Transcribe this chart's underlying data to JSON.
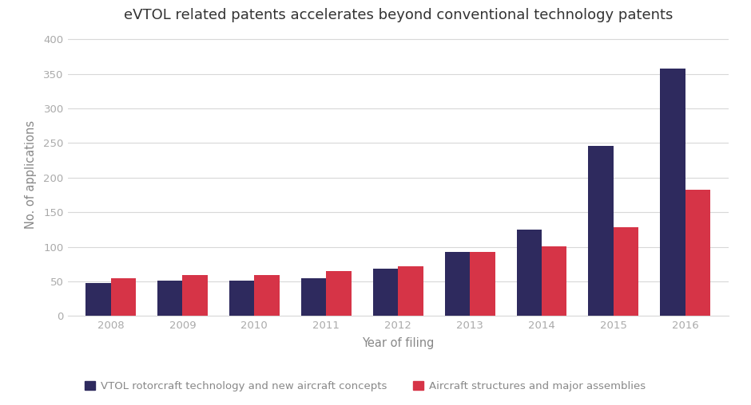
{
  "title": "eVTOL related patents accelerates beyond conventional technology patents",
  "xlabel": "Year of filing",
  "ylabel": "No. of applications",
  "years": [
    2008,
    2009,
    2010,
    2011,
    2012,
    2013,
    2014,
    2015,
    2016
  ],
  "vtol_values": [
    47,
    51,
    51,
    55,
    68,
    93,
    125,
    246,
    358
  ],
  "aircraft_values": [
    54,
    59,
    59,
    65,
    72,
    93,
    101,
    128,
    183
  ],
  "vtol_color": "#2e2a5e",
  "aircraft_color": "#d63447",
  "background_color": "#ffffff",
  "plot_area_color": "#ffffff",
  "legend_vtol": "VTOL rotorcraft technology and new aircraft concepts",
  "legend_aircraft": "Aircraft structures and major assemblies",
  "ylim": [
    0,
    410
  ],
  "yticks": [
    0,
    50,
    100,
    150,
    200,
    250,
    300,
    350,
    400
  ],
  "title_fontsize": 13,
  "axis_label_fontsize": 10.5,
  "tick_fontsize": 9.5,
  "legend_fontsize": 9.5,
  "grid_color": "#d8d8d8",
  "tick_color": "#aaaaaa",
  "label_color": "#888888",
  "title_color": "#333333"
}
